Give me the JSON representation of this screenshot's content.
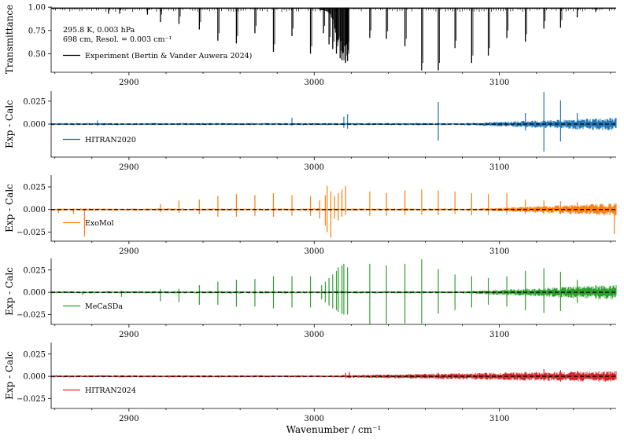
{
  "chart_data": {
    "type": "line",
    "x_range": [
      2858,
      3163
    ],
    "x_ticks": [
      2900,
      3000,
      3100
    ],
    "xlabel": "Wavenumber / cm⁻¹",
    "panels": [
      {
        "id": "transmittance",
        "ylabel": "Transmittance",
        "ylim": [
          0.3,
          1.01
        ],
        "y_ticks": [
          {
            "value": 1.0,
            "label": "1.00"
          },
          {
            "value": 0.75,
            "label": "0.75"
          },
          {
            "value": 0.5,
            "label": "0.50"
          }
        ],
        "annotation": [
          "295.8 K, 0.003 hPa",
          "698 cm, Resol. = 0.003 cm⁻¹"
        ],
        "series": [
          {
            "name": "Experiment (Bertin & Vander Auwera 2024)",
            "color": "#000000"
          }
        ],
        "lines": [
          {
            "x": 2889,
            "y": 0.93
          },
          {
            "x": 2895,
            "y": 0.93
          },
          {
            "x": 2910,
            "y": 0.92
          },
          {
            "x": 2917,
            "y": 0.84
          },
          {
            "x": 2927,
            "y": 0.82
          },
          {
            "x": 2938,
            "y": 0.76
          },
          {
            "x": 2948,
            "y": 0.64
          },
          {
            "x": 2958,
            "y": 0.61
          },
          {
            "x": 2968,
            "y": 0.72
          },
          {
            "x": 2978,
            "y": 0.52
          },
          {
            "x": 2988,
            "y": 0.69
          },
          {
            "x": 2998,
            "y": 0.5
          },
          {
            "x": 3005,
            "y": 0.72
          },
          {
            "x": 3008,
            "y": 0.6
          },
          {
            "x": 3010,
            "y": 0.55
          },
          {
            "x": 3012,
            "y": 0.5
          },
          {
            "x": 3014,
            "y": 0.45
          },
          {
            "x": 3015,
            "y": 0.43
          },
          {
            "x": 3017,
            "y": 0.4
          },
          {
            "x": 3018,
            "y": 0.42
          },
          {
            "x": 3030,
            "y": 0.67
          },
          {
            "x": 3039,
            "y": 0.66
          },
          {
            "x": 3049,
            "y": 0.58
          },
          {
            "x": 3058,
            "y": 0.32
          },
          {
            "x": 3067,
            "y": 0.32
          },
          {
            "x": 3076,
            "y": 0.56
          },
          {
            "x": 3085,
            "y": 0.4
          },
          {
            "x": 3094,
            "y": 0.48
          },
          {
            "x": 3104,
            "y": 0.67
          },
          {
            "x": 3114,
            "y": 0.63
          },
          {
            "x": 3124,
            "y": 0.77
          },
          {
            "x": 3133,
            "y": 0.78
          },
          {
            "x": 3142,
            "y": 0.89
          },
          {
            "x": 3152,
            "y": 0.95
          }
        ]
      },
      {
        "id": "hitran2020",
        "ylabel": "Exp - Calc",
        "ylim": [
          -0.036,
          0.036
        ],
        "y_ticks": [
          {
            "value": 0.025,
            "label": "0.025"
          },
          {
            "value": 0.0,
            "label": "0.000"
          }
        ],
        "series": [
          {
            "name": "HITRAN2020",
            "color": "#1f77b4"
          }
        ],
        "noise": {
          "base": 0.0008,
          "ramp_start": 3080,
          "ramp_end_amp": 0.004
        },
        "spikes": [
          {
            "x": 2883,
            "hi": 0.004,
            "lo": -0.002
          },
          {
            "x": 2988,
            "hi": 0.007,
            "lo": -0.002
          },
          {
            "x": 3016,
            "hi": 0.008,
            "lo": -0.004
          },
          {
            "x": 3018,
            "hi": 0.011,
            "lo": -0.005
          },
          {
            "x": 3067,
            "hi": 0.024,
            "lo": -0.018
          },
          {
            "x": 3114,
            "hi": 0.012,
            "lo": -0.007
          },
          {
            "x": 3124,
            "hi": 0.035,
            "lo": -0.03
          },
          {
            "x": 3133,
            "hi": 0.026,
            "lo": -0.019
          },
          {
            "x": 3142,
            "hi": 0.012,
            "lo": -0.006
          }
        ]
      },
      {
        "id": "exomol",
        "ylabel": "Exp - Calc",
        "ylim": [
          -0.035,
          0.038
        ],
        "y_ticks": [
          {
            "value": 0.025,
            "label": "0.025"
          },
          {
            "value": 0.0,
            "label": "0.000"
          },
          {
            "value": -0.025,
            "label": "−0.025"
          }
        ],
        "series": [
          {
            "name": "ExoMol",
            "color": "#ff7f0e"
          }
        ],
        "noise": {
          "base": 0.0008,
          "ramp_start": 3090,
          "ramp_end_amp": 0.004
        },
        "spikes": [
          {
            "x": 2862,
            "hi": 0.001,
            "lo": -0.004
          },
          {
            "x": 2870,
            "hi": 0.001,
            "lo": -0.005
          },
          {
            "x": 2876,
            "hi": 0.001,
            "lo": -0.03
          },
          {
            "x": 2917,
            "hi": 0.006,
            "lo": -0.003
          },
          {
            "x": 2927,
            "hi": 0.01,
            "lo": -0.004
          },
          {
            "x": 2938,
            "hi": 0.011,
            "lo": -0.005
          },
          {
            "x": 2948,
            "hi": 0.015,
            "lo": -0.008
          },
          {
            "x": 2958,
            "hi": 0.017,
            "lo": -0.008
          },
          {
            "x": 2968,
            "hi": 0.016,
            "lo": -0.007
          },
          {
            "x": 2978,
            "hi": 0.018,
            "lo": -0.008
          },
          {
            "x": 2988,
            "hi": 0.016,
            "lo": -0.007
          },
          {
            "x": 2998,
            "hi": 0.015,
            "lo": -0.007
          },
          {
            "x": 3003,
            "hi": 0.01,
            "lo": -0.01
          },
          {
            "x": 3006,
            "hi": 0.016,
            "lo": -0.018
          },
          {
            "x": 3007,
            "hi": 0.026,
            "lo": -0.025
          },
          {
            "x": 3009,
            "hi": 0.02,
            "lo": -0.031
          },
          {
            "x": 3011,
            "hi": 0.015,
            "lo": -0.01
          },
          {
            "x": 3013,
            "hi": 0.018,
            "lo": -0.012
          },
          {
            "x": 3015,
            "hi": 0.022,
            "lo": -0.008
          },
          {
            "x": 3017,
            "hi": 0.026,
            "lo": -0.006
          },
          {
            "x": 3030,
            "hi": 0.02,
            "lo": -0.007
          },
          {
            "x": 3039,
            "hi": 0.018,
            "lo": -0.007
          },
          {
            "x": 3049,
            "hi": 0.021,
            "lo": -0.006
          },
          {
            "x": 3058,
            "hi": 0.022,
            "lo": -0.006
          },
          {
            "x": 3067,
            "hi": 0.021,
            "lo": -0.006
          },
          {
            "x": 3076,
            "hi": 0.02,
            "lo": -0.005
          },
          {
            "x": 3085,
            "hi": 0.018,
            "lo": -0.006
          },
          {
            "x": 3094,
            "hi": 0.017,
            "lo": -0.006
          },
          {
            "x": 3104,
            "hi": 0.018,
            "lo": -0.005
          },
          {
            "x": 3114,
            "hi": 0.011,
            "lo": -0.005
          },
          {
            "x": 3124,
            "hi": 0.01,
            "lo": -0.005
          },
          {
            "x": 3133,
            "hi": 0.009,
            "lo": -0.005
          },
          {
            "x": 3142,
            "hi": 0.008,
            "lo": -0.004
          },
          {
            "x": 3152,
            "hi": 0.006,
            "lo": -0.004
          },
          {
            "x": 3162,
            "hi": 0.004,
            "lo": -0.027
          }
        ]
      },
      {
        "id": "mecasda",
        "ylabel": "Exp - Calc",
        "ylim": [
          -0.036,
          0.038
        ],
        "y_ticks": [
          {
            "value": 0.025,
            "label": "0.025"
          },
          {
            "value": 0.0,
            "label": "0.000"
          },
          {
            "value": -0.025,
            "label": "−0.025"
          }
        ],
        "series": [
          {
            "name": "MeCaSDa",
            "color": "#2ca02c"
          }
        ],
        "noise": {
          "base": 0.0008,
          "ramp_start": 3080,
          "ramp_end_amp": 0.005
        },
        "spikes": [
          {
            "x": 2875,
            "hi": 0.001,
            "lo": -0.003
          },
          {
            "x": 2896,
            "hi": 0.002,
            "lo": -0.005
          },
          {
            "x": 2917,
            "hi": 0.004,
            "lo": -0.01
          },
          {
            "x": 2927,
            "hi": 0.004,
            "lo": -0.011
          },
          {
            "x": 2938,
            "hi": 0.008,
            "lo": -0.014
          },
          {
            "x": 2948,
            "hi": 0.012,
            "lo": -0.014
          },
          {
            "x": 2958,
            "hi": 0.014,
            "lo": -0.016
          },
          {
            "x": 2968,
            "hi": 0.015,
            "lo": -0.016
          },
          {
            "x": 2978,
            "hi": 0.018,
            "lo": -0.018
          },
          {
            "x": 2988,
            "hi": 0.018,
            "lo": -0.017
          },
          {
            "x": 2998,
            "hi": 0.018,
            "lo": -0.017
          },
          {
            "x": 3004,
            "hi": 0.008,
            "lo": -0.008
          },
          {
            "x": 3006,
            "hi": 0.012,
            "lo": -0.011
          },
          {
            "x": 3008,
            "hi": 0.016,
            "lo": -0.015
          },
          {
            "x": 3010,
            "hi": 0.02,
            "lo": -0.018
          },
          {
            "x": 3012,
            "hi": 0.024,
            "lo": -0.02
          },
          {
            "x": 3013,
            "hi": 0.028,
            "lo": -0.022
          },
          {
            "x": 3015,
            "hi": 0.03,
            "lo": -0.024
          },
          {
            "x": 3016,
            "hi": 0.032,
            "lo": -0.025
          },
          {
            "x": 3018,
            "hi": 0.028,
            "lo": -0.025
          },
          {
            "x": 3030,
            "hi": 0.032,
            "lo": -0.036
          },
          {
            "x": 3039,
            "hi": 0.03,
            "lo": -0.035
          },
          {
            "x": 3049,
            "hi": 0.032,
            "lo": -0.035
          },
          {
            "x": 3058,
            "hi": 0.037,
            "lo": -0.035
          },
          {
            "x": 3067,
            "hi": 0.026,
            "lo": -0.024
          },
          {
            "x": 3076,
            "hi": 0.02,
            "lo": -0.02
          },
          {
            "x": 3085,
            "hi": 0.018,
            "lo": -0.017
          },
          {
            "x": 3094,
            "hi": 0.016,
            "lo": -0.014
          },
          {
            "x": 3104,
            "hi": 0.018,
            "lo": -0.016
          },
          {
            "x": 3114,
            "hi": 0.024,
            "lo": -0.02
          },
          {
            "x": 3124,
            "hi": 0.027,
            "lo": -0.023
          },
          {
            "x": 3133,
            "hi": 0.023,
            "lo": -0.021
          },
          {
            "x": 3142,
            "hi": 0.014,
            "lo": -0.012
          },
          {
            "x": 3152,
            "hi": 0.008,
            "lo": -0.007
          }
        ]
      },
      {
        "id": "hitran2024",
        "ylabel": "Exp - Calc",
        "ylim": [
          -0.036,
          0.038
        ],
        "y_ticks": [
          {
            "value": 0.025,
            "label": "0.025"
          },
          {
            "value": 0.0,
            "label": "0.000"
          },
          {
            "value": -0.025,
            "label": "−0.025"
          }
        ],
        "series": [
          {
            "name": "HITRAN2024",
            "color": "#d62728"
          }
        ],
        "noise": {
          "base": 0.0008,
          "ramp_start": 3010,
          "ramp_end_amp": 0.0035
        },
        "spikes": [
          {
            "x": 3017,
            "hi": 0.004,
            "lo": -0.002
          },
          {
            "x": 3019,
            "hi": 0.005,
            "lo": -0.002
          },
          {
            "x": 3067,
            "hi": 0.004,
            "lo": -0.003
          },
          {
            "x": 3114,
            "hi": 0.005,
            "lo": -0.004
          },
          {
            "x": 3124,
            "hi": 0.008,
            "lo": -0.005
          },
          {
            "x": 3133,
            "hi": 0.007,
            "lo": -0.006
          },
          {
            "x": 3142,
            "hi": 0.006,
            "lo": -0.004
          },
          {
            "x": 3152,
            "hi": 0.005,
            "lo": -0.003
          }
        ]
      }
    ]
  }
}
